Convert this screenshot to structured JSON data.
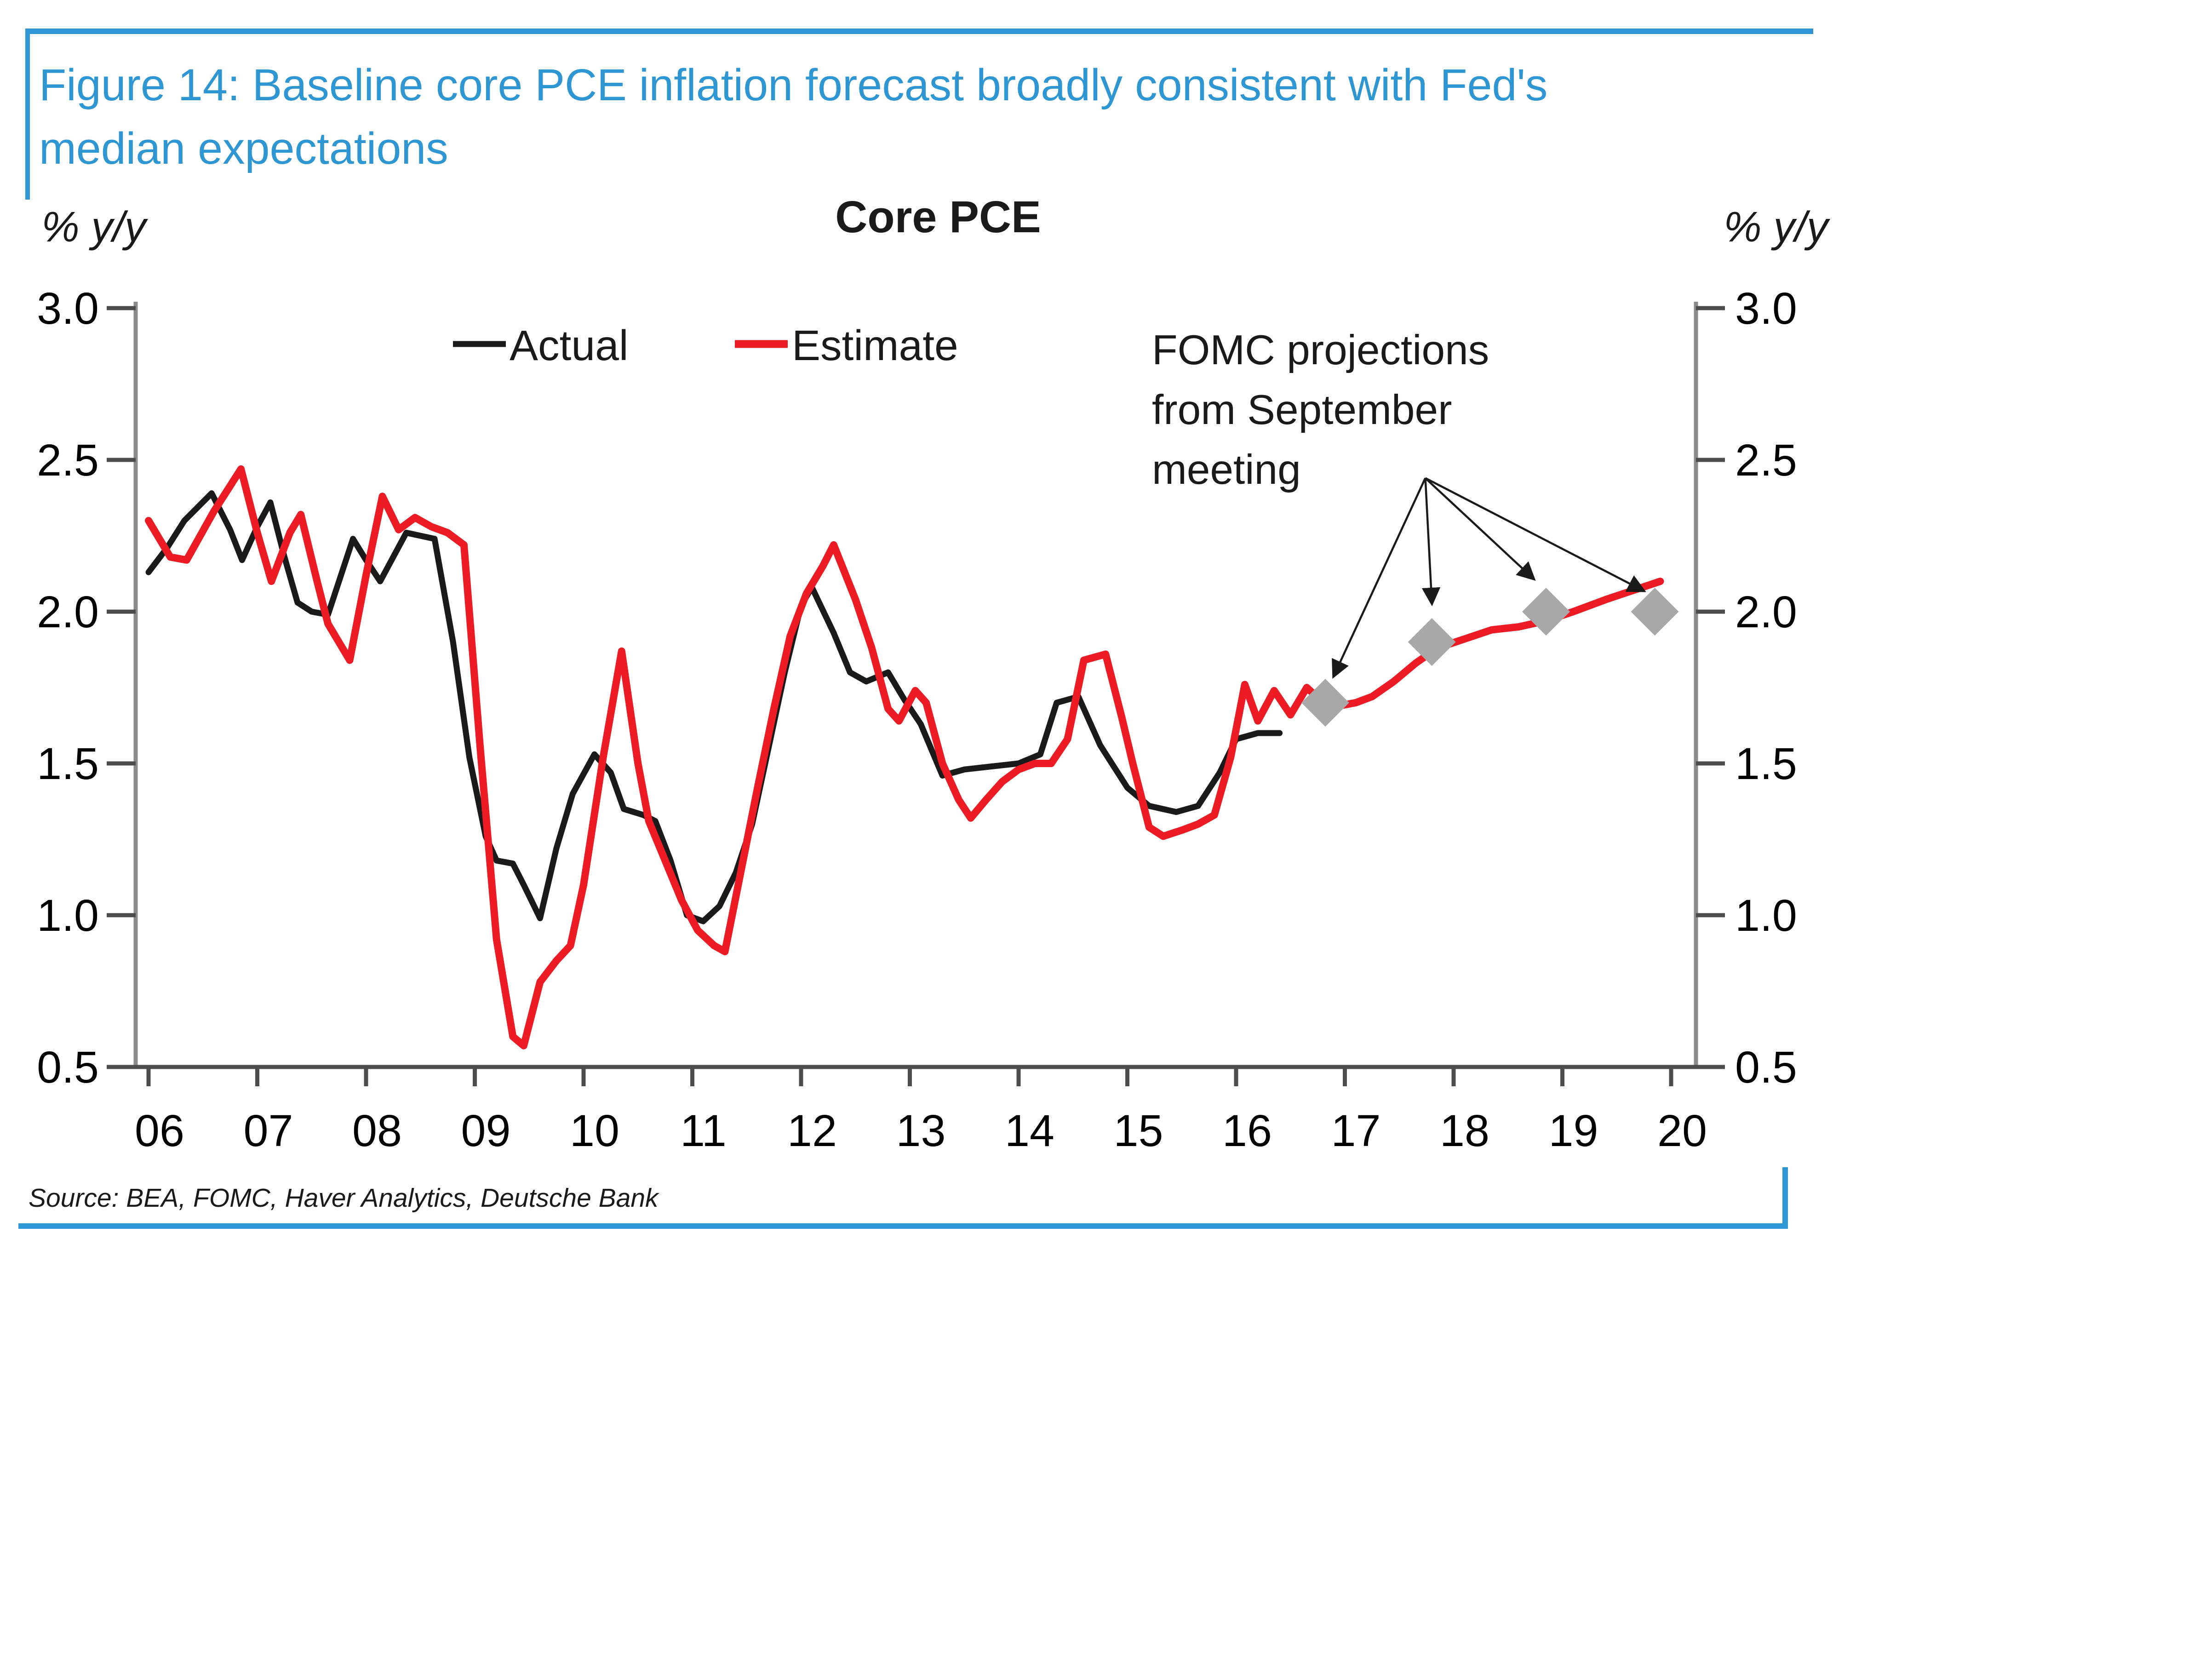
{
  "figure": {
    "title_line1": "Figure 14: Baseline core PCE inflation forecast broadly consistent with Fed's",
    "title_line2": "median expectations",
    "source": "Source: BEA, FOMC, Haver Analytics, Deutsche Bank",
    "accent_blue": "#2E97D3",
    "text_black": "#1a1a1a"
  },
  "chart_data": {
    "type": "line",
    "title": "Core PCE",
    "ylabel_left": "% y/y",
    "ylabel_right": "% y/y",
    "ylim": [
      0.5,
      3.0
    ],
    "yticks": [
      "3.0",
      "2.5",
      "2.0",
      "1.5",
      "1.0",
      "0.5"
    ],
    "ytick_values": [
      3.0,
      2.5,
      2.0,
      1.5,
      1.0,
      0.5
    ],
    "xticks": [
      "06",
      "07",
      "08",
      "09",
      "10",
      "11",
      "12",
      "13",
      "14",
      "15",
      "16",
      "17",
      "18",
      "19",
      "20"
    ],
    "xtick_values": [
      2006,
      2007,
      2008,
      2009,
      2010,
      2011,
      2012,
      2013,
      2014,
      2015,
      2016,
      2017,
      2018,
      2019,
      2020
    ],
    "grid": false,
    "legend_position": "top-left-inside",
    "legend": [
      {
        "label": "Actual",
        "color": "#1a1a1a"
      },
      {
        "label": "Estimate",
        "color": "#ED1B24"
      }
    ],
    "annotation": {
      "lines": [
        "FOMC projections",
        "from September",
        "meeting"
      ],
      "color": "#1a1a1a"
    },
    "fomc_projections": {
      "name": "FOMC projections from September meeting (median, core PCE)",
      "color": "#A8A8A8",
      "points": [
        [
          2016.82,
          1.7
        ],
        [
          2017.8,
          1.9
        ],
        [
          2018.85,
          2.0
        ],
        [
          2019.85,
          2.0
        ]
      ]
    },
    "arrows": {
      "origin": [
        2017.74,
        2.44
      ],
      "targets": [
        [
          2016.9,
          1.79
        ],
        [
          2017.8,
          2.03
        ],
        [
          2018.73,
          2.11
        ],
        [
          2019.74,
          2.07
        ]
      ]
    },
    "series": [
      {
        "name": "Actual",
        "color": "#1a1a1a",
        "width": 13,
        "points": [
          [
            2006.0,
            2.13
          ],
          [
            2006.17,
            2.21
          ],
          [
            2006.33,
            2.3
          ],
          [
            2006.58,
            2.39
          ],
          [
            2006.75,
            2.27
          ],
          [
            2006.86,
            2.17
          ],
          [
            2007.0,
            2.28
          ],
          [
            2007.12,
            2.36
          ],
          [
            2007.25,
            2.18
          ],
          [
            2007.37,
            2.03
          ],
          [
            2007.5,
            2.0
          ],
          [
            2007.65,
            1.99
          ],
          [
            2007.88,
            2.24
          ],
          [
            2008.0,
            2.17
          ],
          [
            2008.13,
            2.1
          ],
          [
            2008.25,
            2.18
          ],
          [
            2008.37,
            2.26
          ],
          [
            2008.5,
            2.25
          ],
          [
            2008.63,
            2.24
          ],
          [
            2008.8,
            1.9
          ],
          [
            2008.95,
            1.52
          ],
          [
            2009.1,
            1.26
          ],
          [
            2009.2,
            1.18
          ],
          [
            2009.35,
            1.17
          ],
          [
            2009.45,
            1.1
          ],
          [
            2009.6,
            0.99
          ],
          [
            2009.75,
            1.22
          ],
          [
            2009.9,
            1.4
          ],
          [
            2010.1,
            1.53
          ],
          [
            2010.25,
            1.47
          ],
          [
            2010.37,
            1.35
          ],
          [
            2010.55,
            1.33
          ],
          [
            2010.66,
            1.31
          ],
          [
            2010.8,
            1.18
          ],
          [
            2010.95,
            1.0
          ],
          [
            2011.1,
            0.98
          ],
          [
            2011.25,
            1.03
          ],
          [
            2011.4,
            1.14
          ],
          [
            2011.55,
            1.3
          ],
          [
            2011.7,
            1.55
          ],
          [
            2011.85,
            1.8
          ],
          [
            2012.0,
            2.02
          ],
          [
            2012.1,
            2.08
          ],
          [
            2012.3,
            1.93
          ],
          [
            2012.45,
            1.8
          ],
          [
            2012.6,
            1.77
          ],
          [
            2012.8,
            1.8
          ],
          [
            2012.95,
            1.71
          ],
          [
            2013.1,
            1.63
          ],
          [
            2013.3,
            1.46
          ],
          [
            2013.5,
            1.48
          ],
          [
            2013.75,
            1.49
          ],
          [
            2014.0,
            1.5
          ],
          [
            2014.2,
            1.53
          ],
          [
            2014.35,
            1.7
          ],
          [
            2014.55,
            1.72
          ],
          [
            2014.75,
            1.56
          ],
          [
            2015.0,
            1.42
          ],
          [
            2015.2,
            1.36
          ],
          [
            2015.45,
            1.34
          ],
          [
            2015.65,
            1.36
          ],
          [
            2015.85,
            1.47
          ],
          [
            2016.0,
            1.58
          ],
          [
            2016.2,
            1.6
          ],
          [
            2016.4,
            1.6
          ]
        ]
      },
      {
        "name": "Estimate",
        "color": "#ED1B24",
        "width": 16,
        "points": [
          [
            2006.0,
            2.3
          ],
          [
            2006.2,
            2.18
          ],
          [
            2006.35,
            2.17
          ],
          [
            2006.6,
            2.33
          ],
          [
            2006.85,
            2.47
          ],
          [
            2007.0,
            2.26
          ],
          [
            2007.13,
            2.1
          ],
          [
            2007.3,
            2.26
          ],
          [
            2007.4,
            2.32
          ],
          [
            2007.55,
            2.1
          ],
          [
            2007.65,
            1.96
          ],
          [
            2007.85,
            1.84
          ],
          [
            2008.0,
            2.12
          ],
          [
            2008.15,
            2.38
          ],
          [
            2008.3,
            2.27
          ],
          [
            2008.45,
            2.31
          ],
          [
            2008.6,
            2.28
          ],
          [
            2008.75,
            2.26
          ],
          [
            2008.9,
            2.22
          ],
          [
            2009.05,
            1.55
          ],
          [
            2009.2,
            0.92
          ],
          [
            2009.35,
            0.6
          ],
          [
            2009.45,
            0.57
          ],
          [
            2009.6,
            0.78
          ],
          [
            2009.75,
            0.85
          ],
          [
            2009.88,
            0.9
          ],
          [
            2010.0,
            1.1
          ],
          [
            2010.18,
            1.52
          ],
          [
            2010.35,
            1.87
          ],
          [
            2010.5,
            1.5
          ],
          [
            2010.6,
            1.31
          ],
          [
            2010.75,
            1.18
          ],
          [
            2010.9,
            1.05
          ],
          [
            2011.05,
            0.95
          ],
          [
            2011.2,
            0.9
          ],
          [
            2011.3,
            0.88
          ],
          [
            2011.45,
            1.15
          ],
          [
            2011.6,
            1.42
          ],
          [
            2011.75,
            1.68
          ],
          [
            2011.9,
            1.92
          ],
          [
            2012.05,
            2.06
          ],
          [
            2012.2,
            2.15
          ],
          [
            2012.3,
            2.22
          ],
          [
            2012.5,
            2.04
          ],
          [
            2012.65,
            1.88
          ],
          [
            2012.8,
            1.68
          ],
          [
            2012.9,
            1.64
          ],
          [
            2013.05,
            1.74
          ],
          [
            2013.15,
            1.7
          ],
          [
            2013.3,
            1.5
          ],
          [
            2013.45,
            1.38
          ],
          [
            2013.56,
            1.32
          ],
          [
            2013.7,
            1.38
          ],
          [
            2013.85,
            1.44
          ],
          [
            2014.0,
            1.48
          ],
          [
            2014.15,
            1.5
          ],
          [
            2014.3,
            1.5
          ],
          [
            2014.45,
            1.58
          ],
          [
            2014.6,
            1.84
          ],
          [
            2014.8,
            1.86
          ],
          [
            2014.95,
            1.65
          ],
          [
            2015.05,
            1.5
          ],
          [
            2015.2,
            1.29
          ],
          [
            2015.33,
            1.26
          ],
          [
            2015.5,
            1.28
          ],
          [
            2015.65,
            1.3
          ],
          [
            2015.8,
            1.33
          ],
          [
            2015.95,
            1.52
          ],
          [
            2016.08,
            1.76
          ],
          [
            2016.2,
            1.64
          ],
          [
            2016.35,
            1.74
          ],
          [
            2016.5,
            1.66
          ],
          [
            2016.65,
            1.75
          ],
          [
            2016.8,
            1.7
          ],
          [
            2016.95,
            1.69
          ],
          [
            2017.1,
            1.7
          ],
          [
            2017.25,
            1.72
          ],
          [
            2017.45,
            1.77
          ],
          [
            2017.65,
            1.83
          ],
          [
            2017.85,
            1.88
          ],
          [
            2018.1,
            1.91
          ],
          [
            2018.35,
            1.94
          ],
          [
            2018.6,
            1.95
          ],
          [
            2018.85,
            1.97
          ],
          [
            2019.1,
            2.0
          ],
          [
            2019.4,
            2.04
          ],
          [
            2019.65,
            2.07
          ],
          [
            2019.9,
            2.1
          ]
        ]
      }
    ]
  }
}
